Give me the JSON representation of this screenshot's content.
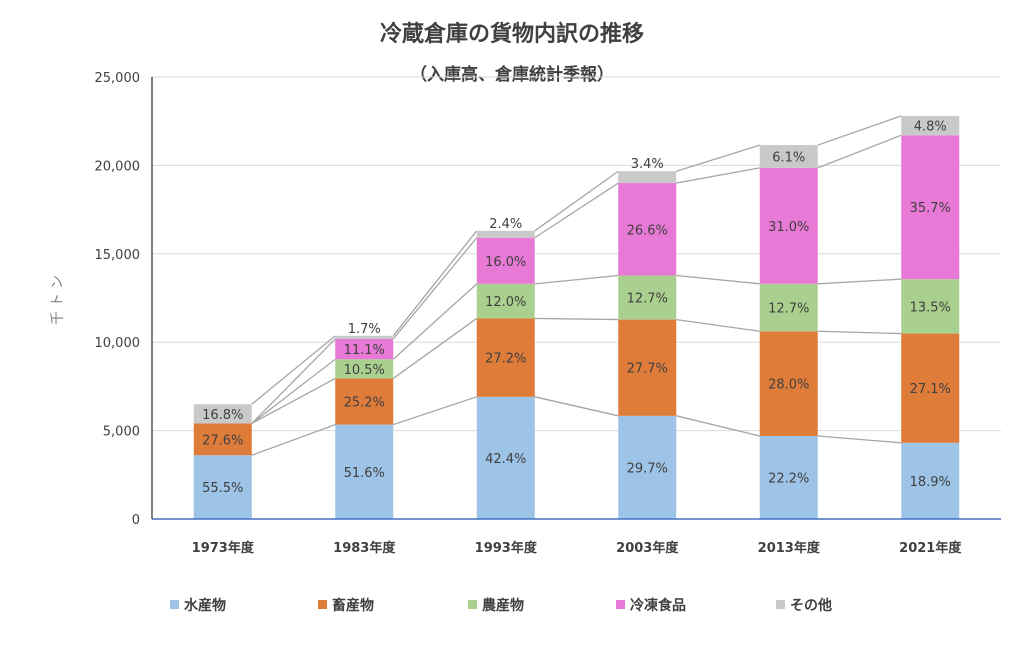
{
  "chart_data": {
    "type": "bar",
    "stacked": true,
    "title": "冷蔵倉庫の貨物内訳の推移",
    "subtitle": "（入庫高、倉庫統計季報）",
    "ylabel": "千トン",
    "xlabel": "",
    "ylim": [
      0,
      25000
    ],
    "yticks": [
      0,
      5000,
      10000,
      15000,
      20000,
      25000
    ],
    "ytick_labels": [
      "0",
      "5,000",
      "10,000",
      "15,000",
      "20,000",
      "25,000"
    ],
    "grid": true,
    "legend_position": "bottom",
    "categories": [
      "1973年度",
      "1983年度",
      "1993年度",
      "2003年度",
      "2013年度",
      "2021年度"
    ],
    "totals": [
      6500,
      10350,
      16300,
      19650,
      21150,
      22800
    ],
    "series": [
      {
        "name": "水産物",
        "color": "#9dc3e6",
        "shares": [
          55.5,
          51.6,
          42.4,
          29.7,
          22.2,
          18.9
        ],
        "labels": [
          "55.5%",
          "51.6%",
          "42.4%",
          "29.7%",
          "22.2%",
          "18.9%"
        ]
      },
      {
        "name": "畜産物",
        "color": "#e07c3a",
        "shares": [
          27.6,
          25.2,
          27.2,
          27.7,
          28.0,
          27.1
        ],
        "labels": [
          "27.6%",
          "25.2%",
          "27.2%",
          "27.7%",
          "28.0%",
          "27.1%"
        ]
      },
      {
        "name": "農産物",
        "color": "#a9d08e",
        "shares": [
          0,
          10.5,
          12.0,
          12.7,
          12.7,
          13.5
        ],
        "labels": [
          "",
          "10.5%",
          "12.0%",
          "12.7%",
          "12.7%",
          "13.5%"
        ]
      },
      {
        "name": "冷凍食品",
        "color": "#e879d6",
        "shares": [
          0,
          11.1,
          16.0,
          26.6,
          31.0,
          35.7
        ],
        "labels": [
          "",
          "11.1%",
          "16.0%",
          "26.6%",
          "31.0%",
          "35.7%"
        ]
      },
      {
        "name": "その他",
        "color": "#c9c9c9",
        "shares": [
          16.8,
          1.7,
          2.4,
          3.4,
          6.1,
          4.8
        ],
        "labels": [
          "16.8%",
          "1.7%",
          "2.4%",
          "3.4%",
          "6.1%",
          "4.8%"
        ]
      }
    ]
  }
}
